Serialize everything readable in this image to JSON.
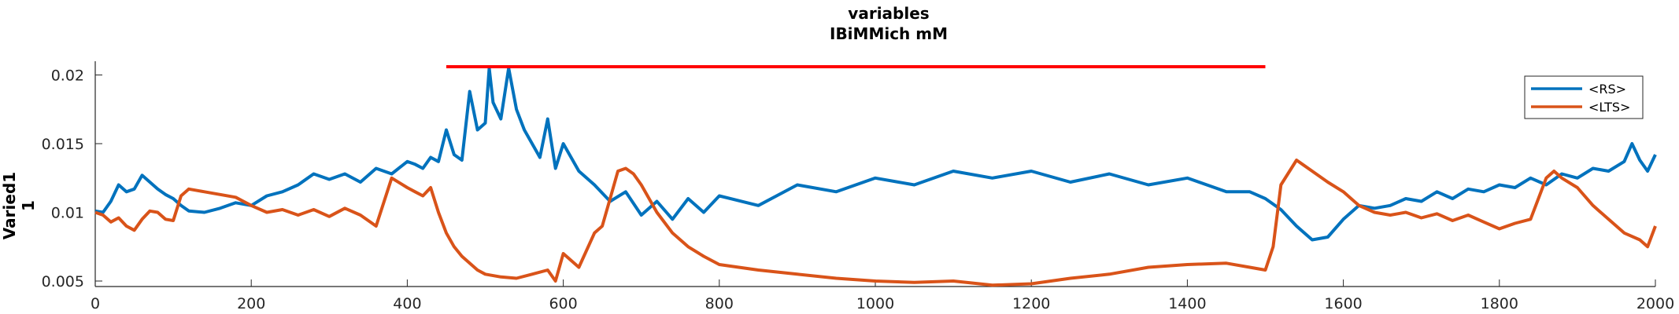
{
  "chart_data": {
    "type": "line",
    "title": "variables",
    "subtitle": "IBiMMich mM",
    "ylabel": [
      "Varied1",
      "1"
    ],
    "xlim": [
      0,
      2000
    ],
    "ylim": [
      0.0046,
      0.021
    ],
    "x_ticks": [
      0,
      200,
      400,
      600,
      800,
      1000,
      1200,
      1400,
      1600,
      1800,
      2000
    ],
    "y_ticks": [
      0.005,
      0.01,
      0.015,
      0.02
    ],
    "y_tick_labels": [
      "0.005",
      "0.01",
      "0.015",
      "0.02"
    ],
    "grid": false,
    "legend_position": "top-right",
    "annotation_line": {
      "x": [
        450,
        1500
      ],
      "y": 0.0206,
      "color": "#ff0000"
    },
    "series": [
      {
        "name": "<RS>",
        "color": "#0072bd",
        "x": [
          0,
          10,
          20,
          30,
          40,
          50,
          60,
          70,
          80,
          90,
          100,
          110,
          120,
          140,
          160,
          180,
          200,
          220,
          240,
          260,
          280,
          300,
          320,
          340,
          360,
          380,
          400,
          410,
          420,
          430,
          440,
          450,
          460,
          470,
          480,
          490,
          500,
          505,
          510,
          520,
          530,
          540,
          550,
          560,
          570,
          580,
          590,
          600,
          620,
          640,
          660,
          680,
          700,
          720,
          740,
          760,
          780,
          800,
          850,
          900,
          950,
          1000,
          1050,
          1100,
          1150,
          1200,
          1250,
          1300,
          1350,
          1400,
          1450,
          1480,
          1500,
          1520,
          1540,
          1560,
          1580,
          1600,
          1620,
          1640,
          1660,
          1680,
          1700,
          1720,
          1740,
          1760,
          1780,
          1800,
          1820,
          1840,
          1860,
          1880,
          1900,
          1920,
          1940,
          1960,
          1970,
          1980,
          1990,
          2000
        ],
        "y": [
          0.0101,
          0.01,
          0.0108,
          0.012,
          0.0115,
          0.0117,
          0.0127,
          0.0122,
          0.0117,
          0.0113,
          0.011,
          0.0105,
          0.0101,
          0.01,
          0.0103,
          0.0107,
          0.0105,
          0.0112,
          0.0115,
          0.012,
          0.0128,
          0.0124,
          0.0128,
          0.0122,
          0.0132,
          0.0128,
          0.0137,
          0.0135,
          0.0132,
          0.014,
          0.0137,
          0.016,
          0.0142,
          0.0138,
          0.0188,
          0.016,
          0.0165,
          0.0205,
          0.018,
          0.0168,
          0.0205,
          0.0175,
          0.016,
          0.015,
          0.014,
          0.0168,
          0.0132,
          0.015,
          0.013,
          0.012,
          0.0108,
          0.0115,
          0.0098,
          0.0108,
          0.0095,
          0.011,
          0.01,
          0.0112,
          0.0105,
          0.012,
          0.0115,
          0.0125,
          0.012,
          0.013,
          0.0125,
          0.013,
          0.0122,
          0.0128,
          0.012,
          0.0125,
          0.0115,
          0.0115,
          0.011,
          0.0102,
          0.009,
          0.008,
          0.0082,
          0.0095,
          0.0105,
          0.0103,
          0.0105,
          0.011,
          0.0108,
          0.0115,
          0.011,
          0.0117,
          0.0115,
          0.012,
          0.0118,
          0.0125,
          0.012,
          0.0128,
          0.0125,
          0.0132,
          0.013,
          0.0137,
          0.015,
          0.0138,
          0.013,
          0.0142
        ]
      },
      {
        "name": "<LTS>",
        "color": "#d95319",
        "x": [
          0,
          10,
          20,
          30,
          40,
          50,
          60,
          70,
          80,
          90,
          100,
          110,
          120,
          140,
          160,
          180,
          200,
          220,
          240,
          260,
          280,
          300,
          320,
          340,
          360,
          380,
          400,
          410,
          420,
          430,
          440,
          450,
          460,
          470,
          480,
          490,
          500,
          520,
          540,
          560,
          580,
          590,
          600,
          620,
          640,
          650,
          660,
          670,
          680,
          690,
          700,
          720,
          740,
          760,
          780,
          800,
          850,
          900,
          950,
          1000,
          1050,
          1100,
          1150,
          1200,
          1250,
          1300,
          1350,
          1400,
          1450,
          1480,
          1500,
          1510,
          1520,
          1540,
          1560,
          1580,
          1600,
          1620,
          1640,
          1660,
          1680,
          1700,
          1720,
          1740,
          1760,
          1780,
          1800,
          1820,
          1840,
          1850,
          1860,
          1870,
          1880,
          1900,
          1920,
          1940,
          1960,
          1980,
          1990,
          2000
        ],
        "y": [
          0.01,
          0.0098,
          0.0093,
          0.0096,
          0.009,
          0.0087,
          0.0095,
          0.0101,
          0.01,
          0.0095,
          0.0094,
          0.0112,
          0.0117,
          0.0115,
          0.0113,
          0.0111,
          0.0105,
          0.01,
          0.0102,
          0.0098,
          0.0102,
          0.0097,
          0.0103,
          0.0098,
          0.009,
          0.0125,
          0.0118,
          0.0115,
          0.0112,
          0.0118,
          0.01,
          0.0085,
          0.0075,
          0.0068,
          0.0063,
          0.0058,
          0.0055,
          0.0053,
          0.0052,
          0.0055,
          0.0058,
          0.005,
          0.007,
          0.006,
          0.0085,
          0.009,
          0.011,
          0.013,
          0.0132,
          0.0128,
          0.012,
          0.01,
          0.0085,
          0.0075,
          0.0068,
          0.0062,
          0.0058,
          0.0055,
          0.0052,
          0.005,
          0.0049,
          0.005,
          0.0047,
          0.0048,
          0.0052,
          0.0055,
          0.006,
          0.0062,
          0.0063,
          0.006,
          0.0058,
          0.0075,
          0.012,
          0.0138,
          0.013,
          0.0122,
          0.0115,
          0.0105,
          0.01,
          0.0098,
          0.01,
          0.0096,
          0.0099,
          0.0094,
          0.0098,
          0.0093,
          0.0088,
          0.0092,
          0.0095,
          0.011,
          0.0125,
          0.013,
          0.0125,
          0.0118,
          0.0105,
          0.0095,
          0.0085,
          0.008,
          0.0075,
          0.009
        ]
      }
    ]
  }
}
